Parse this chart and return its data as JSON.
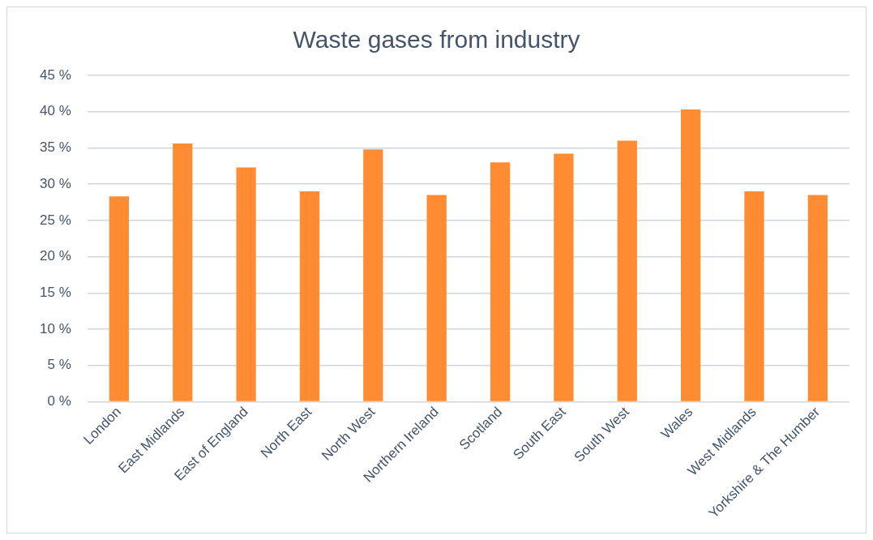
{
  "chart_data": {
    "type": "bar",
    "title": "Waste gases from industry",
    "categories": [
      "London",
      "East Midlands",
      "East of England",
      "North East",
      "North West",
      "Northern Ireland",
      "Scotland",
      "South East",
      "South West",
      "Wales",
      "West Midlands",
      "Yorkshire & The Humber"
    ],
    "values": [
      28.3,
      35.6,
      32.3,
      29.0,
      34.8,
      28.5,
      33.0,
      34.2,
      36.0,
      40.3,
      29.0,
      28.5
    ],
    "color": "#ff8c33",
    "ylim": [
      0,
      45
    ],
    "yticks": [
      {
        "value": 0,
        "label": "0 %"
      },
      {
        "value": 5,
        "label": "5 %"
      },
      {
        "value": 10,
        "label": "10 %"
      },
      {
        "value": 15,
        "label": "15 %"
      },
      {
        "value": 20,
        "label": "20 %"
      },
      {
        "value": 25,
        "label": "25 %"
      },
      {
        "value": 30,
        "label": "30 %"
      },
      {
        "value": 35,
        "label": "35 %"
      },
      {
        "value": 40,
        "label": "40 %"
      },
      {
        "value": 45,
        "label": "45 %"
      }
    ],
    "grid": "y",
    "legend": false
  }
}
